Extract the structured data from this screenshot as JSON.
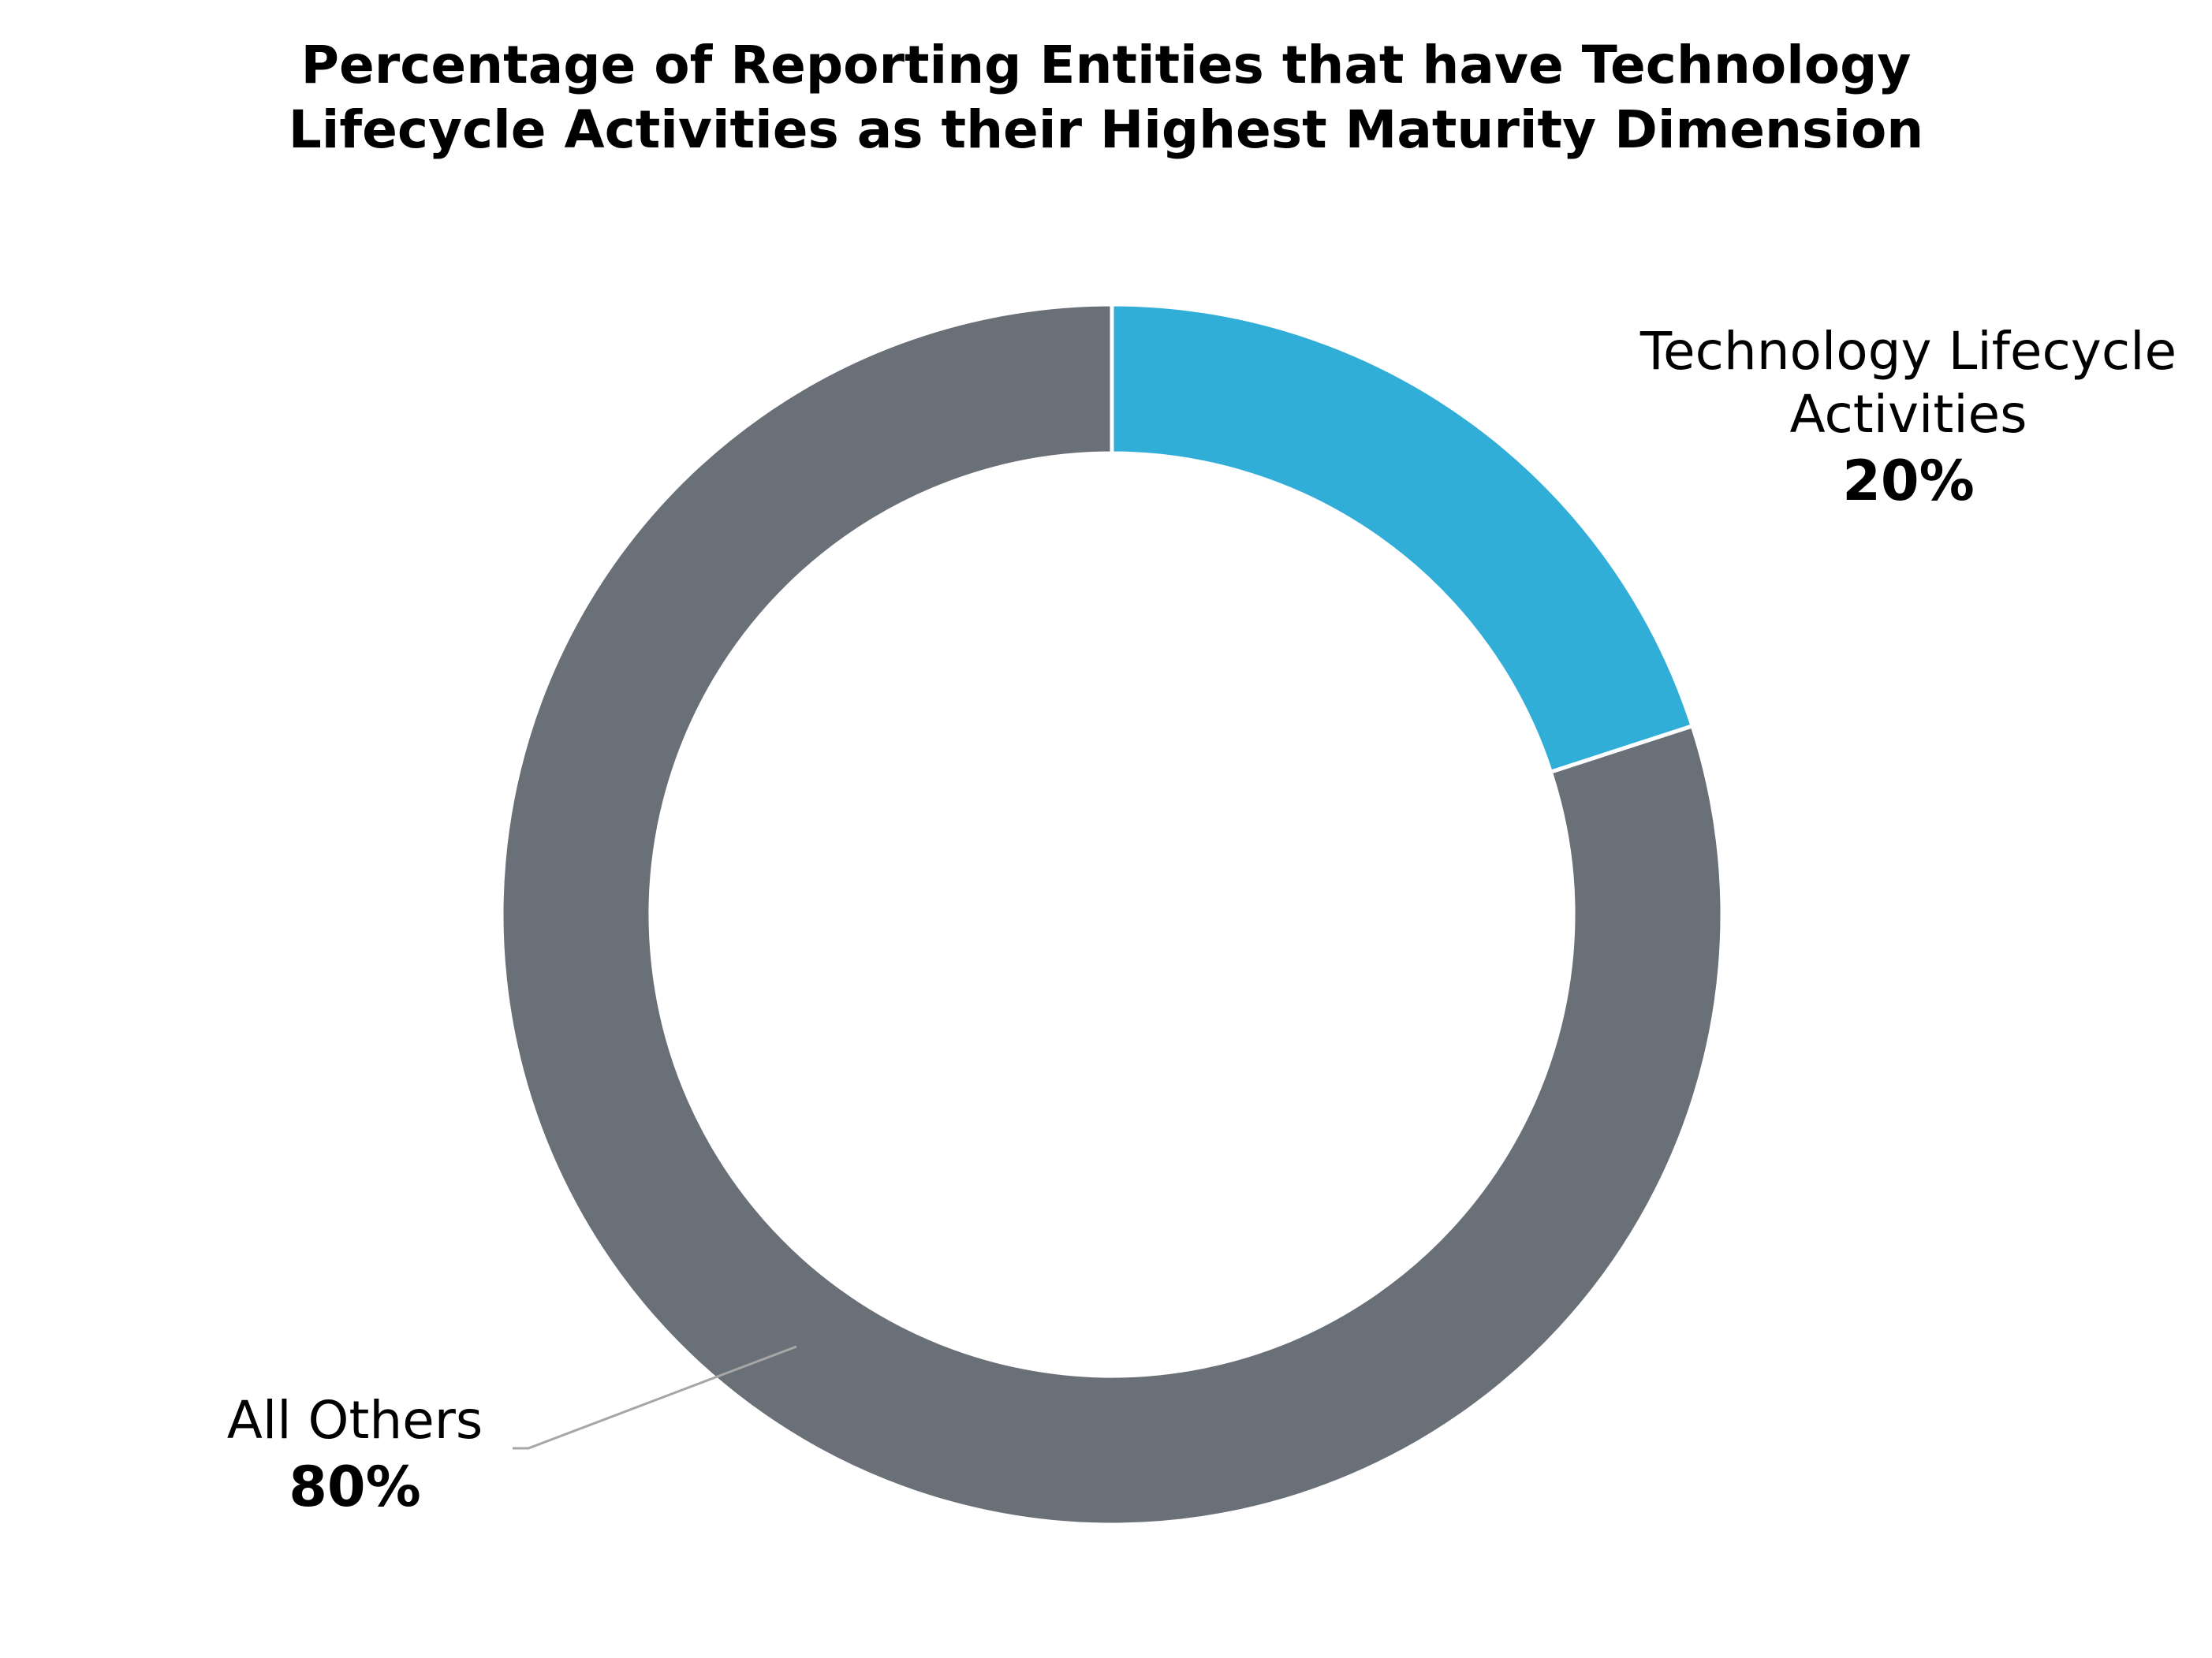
{
  "chart_data": {
    "type": "pie",
    "variant": "donut",
    "title_lines": [
      "Percentage of Reporting Entities that have Technology",
      "Lifecycle Activities as their Highest Maturity Dimension"
    ],
    "slices": [
      {
        "label_lines": [
          "Technology Lifecycle",
          "Activities"
        ],
        "value": 20,
        "value_label": "20%",
        "color": "#31AED8"
      },
      {
        "label_lines": [
          "All Others"
        ],
        "value": 80,
        "value_label": "80%",
        "color": "#6A7078"
      }
    ],
    "legend": "none",
    "slice_separator_color": "#ffffff",
    "leader_line_color": "#a6a6a6"
  }
}
